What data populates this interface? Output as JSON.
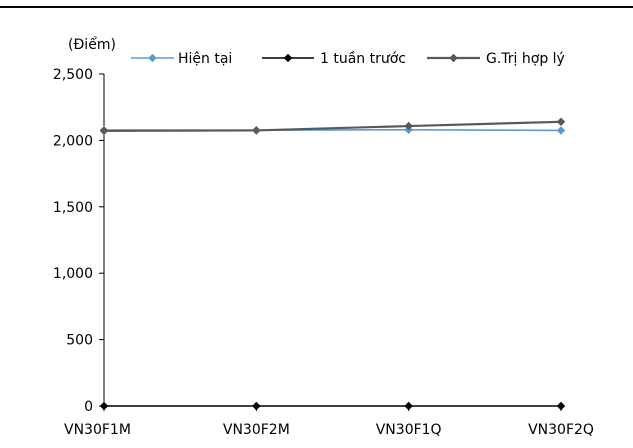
{
  "chart_data": {
    "type": "line",
    "unit_label": "(Điểm)",
    "categories": [
      "VN30F1M",
      "VN30F2M",
      "VN30F1Q",
      "VN30F2Q"
    ],
    "ylim": [
      0,
      2500
    ],
    "yticks": [
      0,
      500,
      1000,
      1500,
      2000,
      2500
    ],
    "ytick_labels": [
      "0",
      "500",
      "1,000",
      "1,500",
      "2,000",
      "2,500"
    ],
    "grid": false,
    "legend_position": "top",
    "series": [
      {
        "name": "Hiện tại",
        "values": [
          2078,
          2077,
          2080,
          2075
        ],
        "color": "#5B9BD5"
      },
      {
        "name": "1 tuần trước",
        "values": [
          0,
          0,
          0,
          0
        ],
        "color": "#000000"
      },
      {
        "name": "G.Trị hợp lý",
        "values": [
          2072,
          2075,
          2108,
          2140
        ],
        "color": "#595959"
      }
    ]
  }
}
